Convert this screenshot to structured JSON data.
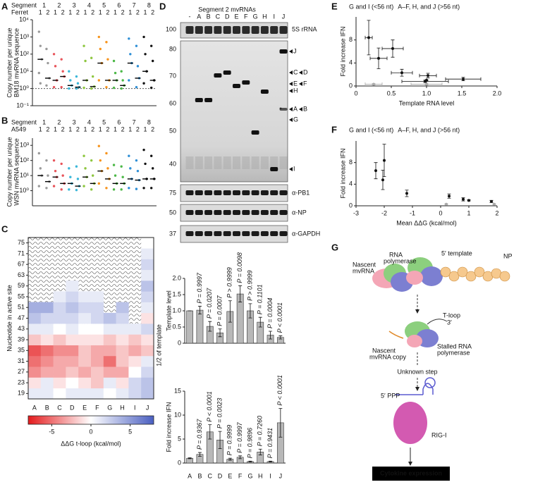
{
  "panel_labels": [
    "A",
    "B",
    "C",
    "D",
    "E",
    "F",
    "G"
  ],
  "chart_data": [
    {
      "type": "strip",
      "header_label": "Segment",
      "group_label": "Ferret",
      "ylabel": [
        "Copy number per unique",
        "BM18 mvRNA sequence"
      ],
      "ylog": true,
      "ylim": [
        0.1,
        10000
      ],
      "yticks": [
        {
          "value": 0.1,
          "label": "10⁻¹"
        },
        {
          "value": 1,
          "label": "10⁰"
        },
        {
          "value": 10,
          "label": "10¹"
        },
        {
          "value": 100,
          "label": "10²"
        },
        {
          "value": 1000,
          "label": "10³"
        },
        {
          "value": 10000,
          "label": "10⁴"
        }
      ],
      "reference_line": 1,
      "series": [
        {
          "name": "1",
          "color": "#9a9a9a",
          "groups": [
            "1",
            "2"
          ],
          "values": [
            [
              2000,
              300,
              50,
              8,
              2
            ],
            [
              200,
              30,
              4,
              1.5
            ]
          ],
          "medians": [
            50,
            4
          ]
        },
        {
          "name": "2",
          "color": "#e8545a",
          "groups": [
            "1",
            "2"
          ],
          "values": [
            [
              100,
              20,
              3,
              1.2
            ],
            [
              50,
              10,
              5,
              1.2
            ]
          ],
          "medians": [
            3,
            5
          ]
        },
        {
          "name": "3",
          "color": "#3ab7d9",
          "groups": [
            "1",
            "2"
          ],
          "values": [
            [
              10,
              3,
              1.5,
              1
            ],
            [
              5,
              2,
              1.2,
              1
            ]
          ],
          "medians": [
            1.5,
            1.2
          ]
        },
        {
          "name": "4",
          "color": "#8dc63f",
          "groups": [
            "1",
            "2"
          ],
          "values": [
            [
              300,
              40,
              3,
              1.1
            ],
            [
              60,
              5,
              1.3,
              1
            ]
          ],
          "medians": [
            3,
            1.3
          ]
        },
        {
          "name": "5",
          "color": "#f7941d",
          "groups": [
            "1",
            "2"
          ],
          "values": [
            [
              1000,
              200,
              30,
              3
            ],
            [
              500,
              50,
              3,
              1.2
            ]
          ],
          "medians": [
            30,
            3
          ]
        },
        {
          "name": "6",
          "color": "#4cb847",
          "groups": [
            "1",
            "2"
          ],
          "values": [
            [
              40,
              8,
              3,
              1.1
            ],
            [
              10,
              3,
              1.5,
              1
            ]
          ],
          "medians": [
            3,
            1.5
          ]
        },
        {
          "name": "7",
          "color": "#2e8fd6",
          "groups": [
            "1",
            "2"
          ],
          "values": [
            [
              800,
              100,
              30,
              3
            ],
            [
              300,
              20,
              4,
              1.2
            ]
          ],
          "medians": [
            30,
            4
          ]
        },
        {
          "name": "8",
          "color": "#111111",
          "groups": [
            "1",
            "2"
          ],
          "values": [
            [
              1000,
              100,
              10,
              2
            ],
            [
              300,
              40,
              3,
              1.1
            ]
          ],
          "medians": [
            10,
            3
          ]
        }
      ]
    },
    {
      "type": "strip",
      "header_label": "Segment",
      "group_label": "A549",
      "ylabel": [
        "Copy number per unique",
        "WSN mvRNA sequence"
      ],
      "ylog": true,
      "ylim": [
        0.1,
        3000
      ],
      "yticks": [
        {
          "value": 1,
          "label": "10⁰"
        },
        {
          "value": 10,
          "label": "10¹"
        },
        {
          "value": 100,
          "label": "10²"
        },
        {
          "value": 1000,
          "label": "10³"
        }
      ],
      "series": [
        {
          "name": "1",
          "color": "#9a9a9a",
          "groups": [
            "1",
            "2"
          ],
          "values": [
            [
              300,
              30,
              10,
              2
            ],
            [
              100,
              10,
              4,
              1.5
            ]
          ],
          "medians": [
            10,
            4
          ]
        },
        {
          "name": "2",
          "color": "#e8545a",
          "groups": [
            "1",
            "2"
          ],
          "values": [
            [
              100,
              20,
              8,
              2
            ],
            [
              60,
              10,
              3,
              1.2
            ]
          ],
          "medians": [
            8,
            3
          ]
        },
        {
          "name": "3",
          "color": "#3ab7d9",
          "groups": [
            "1",
            "2"
          ],
          "values": [
            [
              30,
              8,
              3,
              1.2
            ],
            [
              40,
              6,
              2,
              1.1
            ]
          ],
          "medians": [
            3,
            2
          ]
        },
        {
          "name": "4",
          "color": "#8dc63f",
          "groups": [
            "1",
            "2"
          ],
          "values": [
            [
              200,
              30,
              8,
              2
            ],
            [
              100,
              10,
              3,
              1.2
            ]
          ],
          "medians": [
            8,
            3
          ]
        },
        {
          "name": "5",
          "color": "#f7941d",
          "groups": [
            "1",
            "2"
          ],
          "values": [
            [
              900,
              100,
              20,
              3
            ],
            [
              300,
              30,
              6,
              1.5
            ]
          ],
          "medians": [
            20,
            6
          ]
        },
        {
          "name": "6",
          "color": "#4cb847",
          "groups": [
            "1",
            "2"
          ],
          "values": [
            [
              50,
              10,
              3,
              1.2
            ],
            [
              40,
              8,
              3,
              1.2
            ]
          ],
          "medians": [
            3,
            3
          ]
        },
        {
          "name": "7",
          "color": "#2e8fd6",
          "groups": [
            "1",
            "2"
          ],
          "values": [
            [
              200,
              30,
              6,
              1.5
            ],
            [
              100,
              20,
              5,
              1.3
            ]
          ],
          "medians": [
            6,
            5
          ]
        },
        {
          "name": "8",
          "color": "#111111",
          "groups": [
            "1",
            "2"
          ],
          "values": [
            [
              500,
              60,
              6,
              1.5
            ],
            [
              200,
              30,
              6,
              1.5
            ]
          ],
          "medians": [
            6,
            6
          ]
        }
      ]
    },
    {
      "type": "heatmap",
      "ylabel": "Nucleotide in active site",
      "annotation": "1/2 of template",
      "categories": [
        "A",
        "B",
        "C",
        "D",
        "E",
        "F",
        "G",
        "H",
        "I",
        "J"
      ],
      "ylim": [
        17,
        77
      ],
      "yticks": [
        19,
        23,
        27,
        31,
        35,
        39,
        43,
        47,
        51,
        55,
        59,
        63,
        67,
        71,
        75
      ],
      "values": [
        [
          1,
          1,
          0,
          1,
          1,
          1,
          0,
          1,
          2,
          3
        ],
        [
          -1,
          1,
          -1,
          0,
          -1,
          -2,
          1,
          -1,
          2,
          3
        ],
        [
          -4,
          -3,
          -3,
          -2,
          -3,
          -2,
          -3,
          -3,
          0,
          2
        ],
        [
          -5,
          -4,
          -3,
          -3,
          -2,
          -3,
          -5,
          -2,
          -1,
          1
        ],
        [
          -6,
          -5,
          -4,
          -4,
          -2,
          -3,
          -3,
          -2,
          -3,
          -2
        ],
        [
          -2,
          -1,
          -2,
          -1,
          -1,
          -1,
          -2,
          -1,
          -2,
          -1
        ],
        [
          1,
          1,
          0,
          1,
          0,
          0,
          1,
          1,
          1,
          2
        ],
        [
          3,
          2,
          2,
          2,
          1,
          2,
          3,
          2,
          null,
          -1
        ],
        [
          4,
          4,
          2,
          3,
          2,
          2,
          null,
          3,
          null,
          1
        ],
        [
          null,
          null,
          1,
          2,
          1,
          1,
          null,
          null,
          null,
          2
        ],
        [
          null,
          null,
          null,
          1,
          null,
          null,
          null,
          null,
          null,
          3
        ],
        [
          null,
          null,
          null,
          null,
          null,
          null,
          null,
          null,
          null,
          1
        ],
        [
          null,
          null,
          null,
          null,
          null,
          null,
          null,
          null,
          null,
          2
        ],
        [
          null,
          null,
          null,
          null,
          null,
          null,
          null,
          null,
          null,
          1
        ],
        [
          null,
          null,
          null,
          null,
          null,
          null,
          null,
          null,
          null,
          0
        ]
      ],
      "colormap": [
        "#e41a1c",
        "#ffffff",
        "#4a5fc1"
      ],
      "colorbar": {
        "lim": [
          -8,
          8
        ],
        "ticks": [
          -5,
          0,
          5
        ],
        "label": "ΔΔG t-loop (kcal/mol)"
      }
    },
    {
      "type": "bar-panels",
      "color": "#b8b8b8",
      "categories": [
        "A",
        "B",
        "C",
        "D",
        "E",
        "F",
        "G",
        "H",
        "I",
        "J"
      ],
      "panels": [
        {
          "ylabel": "Template level",
          "ylim": [
            0,
            2
          ],
          "yticks": [
            0,
            0.5,
            {
              "value": 1,
              "label": "1.0"
            },
            1.5,
            {
              "value": 2,
              "label": "2.0"
            }
          ],
          "values": [
            1.0,
            1.02,
            0.52,
            0.32,
            0.98,
            1.52,
            1.0,
            0.65,
            0.25,
            0.18
          ],
          "errors": [
            0,
            0.12,
            0.15,
            0.12,
            0.33,
            0.25,
            0.22,
            0.15,
            0.12,
            0.05
          ],
          "p_labels": [
            null,
            "P = 0.9997",
            "P = 0.0207",
            "P = 0.0007",
            "P > 0.9999",
            "P = 0.0098",
            "P > 0.9999",
            "P = 0.1101",
            "P = 0.0004",
            "P < 0.0001"
          ]
        },
        {
          "ylabel": "Fold increase IFN",
          "ylim": [
            0,
            15
          ],
          "yticks": [
            0,
            5,
            10,
            15
          ],
          "values": [
            1,
            1.8,
            6.5,
            4.8,
            0.8,
            1.2,
            0.3,
            2.3,
            0.3,
            8.4
          ],
          "errors": [
            0.1,
            0.4,
            1.5,
            1.8,
            0.2,
            0.3,
            0.1,
            0.6,
            0.1,
            3
          ],
          "p_labels": [
            null,
            "P = 0.9367",
            "P < 0.0001",
            "P = 0.0023",
            "P = 0.9999",
            "P = 0.9997",
            "P = 0.9896",
            "P = 0.7260",
            "P = 0.9431",
            "P < 0.0001"
          ]
        }
      ]
    },
    {
      "type": "scatter",
      "ylabel": "Fold increase IFN",
      "xlabel": "Template RNA level",
      "xlim": [
        0,
        2
      ],
      "xticks": [
        0,
        0.5,
        {
          "value": 1,
          "label": "1.0"
        },
        1.5,
        {
          "value": 2,
          "label": "2.0"
        }
      ],
      "ylim": [
        0,
        12
      ],
      "yticks": [
        0,
        4,
        8
      ],
      "series": [
        {
          "name": "G and I (<56 nt)",
          "color": "#aaaaaa",
          "x": [
            0.25,
            1.0
          ],
          "values": [
            0.3,
            0.3
          ],
          "xerr": [
            0.12,
            0.22
          ],
          "yerr": [
            0.1,
            0.1
          ]
        },
        {
          "name": "A–F, H, and J (>56 nt)",
          "color": "#111111",
          "x": [
            0.18,
            0.32,
            0.52,
            0.65,
            0.98,
            1.0,
            1.02,
            1.52
          ],
          "values": [
            8.4,
            4.8,
            6.5,
            2.3,
            0.8,
            1.0,
            1.8,
            1.2
          ],
          "xerr": [
            0.05,
            0.12,
            0.15,
            0.15,
            0.33,
            0,
            0.12,
            0.25
          ],
          "yerr": [
            3,
            1.8,
            1.5,
            0.6,
            0.2,
            0.1,
            0.4,
            0.3
          ]
        }
      ]
    },
    {
      "type": "scatter",
      "ylabel": "Fold increase IFN",
      "xlabel": "Mean ΔΔG (kcal/mol)",
      "xlim": [
        -3,
        2
      ],
      "xticks": [
        -3,
        -2,
        -1,
        0,
        1,
        2
      ],
      "ylim": [
        0,
        12
      ],
      "yticks": [
        0,
        4,
        8
      ],
      "series": [
        {
          "name": "G and I (<56 nt)",
          "color": "#aaaaaa",
          "x": [
            0.2,
            1.9
          ],
          "values": [
            0.3,
            0.3
          ],
          "yerr": [
            0.1,
            0.1
          ]
        },
        {
          "name": "A–F, H, and J (>56 nt)",
          "color": "#111111",
          "x": [
            -2.3,
            -2.0,
            -2.05,
            -1.2,
            0.3,
            0.8,
            1.0,
            1.8
          ],
          "values": [
            6.5,
            8.4,
            4.8,
            2.3,
            1.8,
            1.2,
            1.0,
            0.8
          ],
          "yerr": [
            1.5,
            3,
            1.8,
            0.6,
            0.4,
            0.3,
            0.1,
            0.2
          ]
        }
      ]
    }
  ],
  "gel": {
    "title": "Segment 2 mvRNAs",
    "lanes": [
      "-",
      "A",
      "B",
      "C",
      "D",
      "E",
      "F",
      "G",
      "H",
      "I",
      "J"
    ],
    "rrna": {
      "marker": "100",
      "label": "5S rRNA"
    },
    "markers": [
      "80",
      "70",
      "60",
      "50",
      "40"
    ],
    "band_labels": [
      "J",
      "C",
      "D",
      "E",
      "F",
      "H",
      "A",
      "B",
      "G",
      "I"
    ],
    "asterisk": "*",
    "blots": [
      {
        "marker": "75",
        "label": "α-PB1"
      },
      {
        "marker": "50",
        "label": "α-NP"
      },
      {
        "marker": "37",
        "label": "α-GAPDH"
      }
    ]
  },
  "schematic": {
    "rna_polymerase": [
      "RNA",
      "polymerase"
    ],
    "template": "5′ template",
    "np": "NP",
    "nascent": [
      "Nascent",
      "mvRNA"
    ],
    "tloop": "T-loop",
    "three_prime": "3′",
    "nascent_copy": [
      "Nascent",
      "mvRNA copy"
    ],
    "stalled": [
      "Stalled RNA",
      "polymerase"
    ],
    "unknown": "Unknown step",
    "ppp": "5′ PPP",
    "rigi": "RIG-I",
    "cytokine": "Cytokine expression"
  }
}
